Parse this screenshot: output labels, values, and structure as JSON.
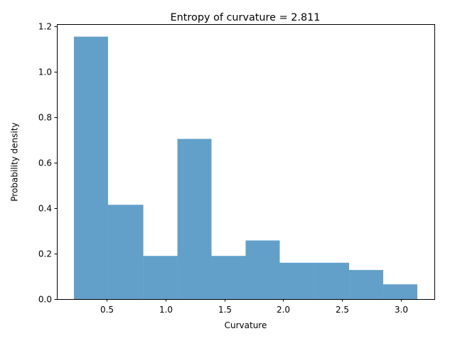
{
  "chart_data": {
    "type": "bar",
    "title": "Entropy of curvature = 2.811",
    "xlabel": "Curvature",
    "ylabel": "Probability density",
    "bin_edges": [
      0.22,
      0.51,
      0.81,
      1.1,
      1.39,
      1.68,
      1.97,
      2.26,
      2.56,
      2.85,
      3.14
    ],
    "values": [
      1.155,
      0.415,
      0.19,
      0.705,
      0.19,
      0.258,
      0.16,
      0.16,
      0.128,
      0.065
    ],
    "xlim": [
      0.075,
      3.285
    ],
    "ylim": [
      0,
      1.21
    ],
    "x_ticks": [
      0.5,
      1.0,
      1.5,
      2.0,
      2.5,
      3.0
    ],
    "x_tick_labels": [
      "0.5",
      "1.0",
      "1.5",
      "2.0",
      "2.5",
      "3.0"
    ],
    "y_ticks": [
      0.0,
      0.2,
      0.4,
      0.6,
      0.8,
      1.0,
      1.2
    ],
    "y_tick_labels": [
      "0.0",
      "0.2",
      "0.4",
      "0.6",
      "0.8",
      "1.0",
      "1.2"
    ],
    "bar_color": "#1f77b4",
    "bar_alpha": 0.7,
    "grid": false,
    "legend": "none"
  }
}
